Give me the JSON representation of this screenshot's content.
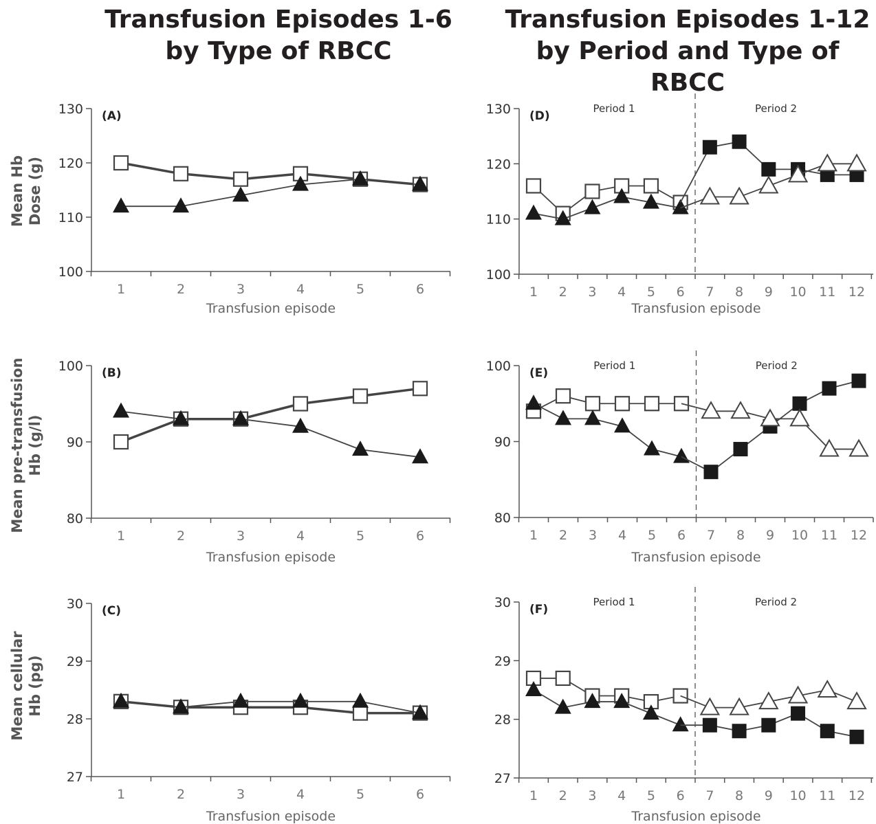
{
  "titles": {
    "left_line1": "Transfusion Episodes 1-6",
    "left_line2": "by Type of RBCC",
    "right_line1": "Transfusion Episodes 1-12",
    "right_line2": "by Period and Type of RBCC"
  },
  "row_labels": {
    "dose_line1": "Mean Hb",
    "dose_line2": "Dose (g)",
    "pre_line1": "Mean pre-transfusion",
    "pre_line2": "Hb (g/l)",
    "mch_line1": "Mean cellular",
    "mch_line2": "Hb (pg)"
  },
  "colors": {
    "axis": "#555555",
    "series_line": "#444444",
    "filled": "#1a1a1a",
    "open_fill": "#ffffff"
  },
  "chart_data": [
    {
      "id": "A",
      "type": "line",
      "label": "(A)",
      "xlabel": "Transfusion episode",
      "ylabel": "Mean Hb Dose (g)",
      "ylim": [
        100,
        130
      ],
      "yticks": [
        100,
        110,
        120,
        130
      ],
      "x": [
        1,
        2,
        3,
        4,
        5,
        6
      ],
      "series": [
        {
          "marker": "open-square",
          "values": [
            120,
            118,
            117,
            118,
            117,
            116
          ]
        },
        {
          "marker": "filled-triangle",
          "values": [
            112,
            112,
            114,
            116,
            117,
            116
          ]
        }
      ]
    },
    {
      "id": "B",
      "type": "line",
      "label": "(B)",
      "xlabel": "Transfusion episode",
      "ylabel": "Mean pre-transfusion Hb (g/l)",
      "ylim": [
        80,
        100
      ],
      "yticks": [
        80,
        90,
        100
      ],
      "x": [
        1,
        2,
        3,
        4,
        5,
        6
      ],
      "series": [
        {
          "marker": "open-square",
          "values": [
            90,
            93,
            93,
            95,
            96,
            97
          ]
        },
        {
          "marker": "filled-triangle",
          "values": [
            94,
            93,
            93,
            92,
            89,
            88
          ]
        }
      ]
    },
    {
      "id": "C",
      "type": "line",
      "label": "(C)",
      "xlabel": "Transfusion episode",
      "ylabel": "Mean cellular Hb (pg)",
      "ylim": [
        27,
        30
      ],
      "yticks": [
        27,
        28,
        29,
        30
      ],
      "x": [
        1,
        2,
        3,
        4,
        5,
        6
      ],
      "series": [
        {
          "marker": "open-square",
          "values": [
            28.3,
            28.2,
            28.2,
            28.2,
            28.1,
            28.1
          ]
        },
        {
          "marker": "filled-triangle",
          "values": [
            28.3,
            28.2,
            28.3,
            28.3,
            28.3,
            28.1
          ]
        }
      ]
    },
    {
      "id": "D",
      "type": "line",
      "label": "(D)",
      "xlabel": "Transfusion episode",
      "ylabel": "Mean Hb Dose (g)",
      "ylim": [
        100,
        130
      ],
      "yticks": [
        100,
        110,
        120,
        130
      ],
      "x": [
        1,
        2,
        3,
        4,
        5,
        6,
        7,
        8,
        9,
        10,
        11,
        12
      ],
      "period_divider": 6.5,
      "period_labels": [
        "Period 1",
        "Period 2"
      ],
      "series": [
        {
          "marker": "open-square",
          "x": [
            1,
            2,
            3,
            4,
            5,
            6
          ],
          "values": [
            116,
            111,
            115,
            116,
            116,
            113
          ]
        },
        {
          "marker": "filled-triangle",
          "x": [
            1,
            2,
            3,
            4,
            5,
            6
          ],
          "values": [
            111,
            110,
            112,
            114,
            113,
            112
          ]
        },
        {
          "marker": "filled-square",
          "x": [
            6,
            7,
            8,
            9,
            10,
            11,
            12
          ],
          "values": [
            113,
            123,
            124,
            119,
            119,
            118,
            118
          ],
          "markers_from": 1
        },
        {
          "marker": "open-triangle",
          "x": [
            6,
            7,
            8,
            9,
            10,
            11,
            12
          ],
          "values": [
            112,
            114,
            114,
            116,
            118,
            120,
            120
          ],
          "markers_from": 1
        }
      ]
    },
    {
      "id": "E",
      "type": "line",
      "label": "(E)",
      "xlabel": "Transfusion episode",
      "ylabel": "Mean pre-transfusion Hb (g/l)",
      "ylim": [
        80,
        100
      ],
      "yticks": [
        80,
        90,
        100
      ],
      "x": [
        1,
        2,
        3,
        4,
        5,
        6,
        7,
        8,
        9,
        10,
        11,
        12
      ],
      "period_divider": 6.5,
      "period_labels": [
        "Period 1",
        "Period 2"
      ],
      "series": [
        {
          "marker": "open-square",
          "x": [
            1,
            2,
            3,
            4,
            5,
            6
          ],
          "values": [
            94,
            96,
            95,
            95,
            95,
            95
          ]
        },
        {
          "marker": "filled-triangle",
          "x": [
            1,
            2,
            3,
            4,
            5,
            6
          ],
          "values": [
            95,
            93,
            93,
            92,
            89,
            88
          ]
        },
        {
          "marker": "filled-square",
          "x": [
            6,
            7,
            8,
            9,
            10,
            11,
            12
          ],
          "values": [
            88,
            86,
            89,
            92,
            95,
            97,
            98
          ],
          "markers_from": 1
        },
        {
          "marker": "open-triangle",
          "x": [
            6,
            7,
            8,
            9,
            10,
            11,
            12
          ],
          "values": [
            95,
            94,
            94,
            93,
            93,
            89,
            89
          ],
          "markers_from": 1
        }
      ]
    },
    {
      "id": "F",
      "type": "line",
      "label": "(F)",
      "xlabel": "Transfusion episode",
      "ylabel": "Mean cellular Hb (pg)",
      "ylim": [
        27,
        30
      ],
      "yticks": [
        27,
        28,
        29,
        30
      ],
      "x": [
        1,
        2,
        3,
        4,
        5,
        6,
        7,
        8,
        9,
        10,
        11,
        12
      ],
      "period_divider": 6.5,
      "period_labels": [
        "Period 1",
        "Period 2"
      ],
      "series": [
        {
          "marker": "open-square",
          "x": [
            1,
            2,
            3,
            4,
            5,
            6
          ],
          "values": [
            28.7,
            28.7,
            28.4,
            28.4,
            28.3,
            28.4
          ]
        },
        {
          "marker": "filled-triangle",
          "x": [
            1,
            2,
            3,
            4,
            5,
            6
          ],
          "values": [
            28.5,
            28.2,
            28.3,
            28.3,
            28.1,
            27.9
          ]
        },
        {
          "marker": "filled-square",
          "x": [
            6,
            7,
            8,
            9,
            10,
            11,
            12
          ],
          "values": [
            27.9,
            27.9,
            27.8,
            27.9,
            28.1,
            27.8,
            27.7
          ],
          "markers_from": 1
        },
        {
          "marker": "open-triangle",
          "x": [
            6,
            7,
            8,
            9,
            10,
            11,
            12
          ],
          "values": [
            28.4,
            28.2,
            28.2,
            28.3,
            28.4,
            28.5,
            28.3
          ],
          "markers_from": 1
        }
      ]
    }
  ]
}
